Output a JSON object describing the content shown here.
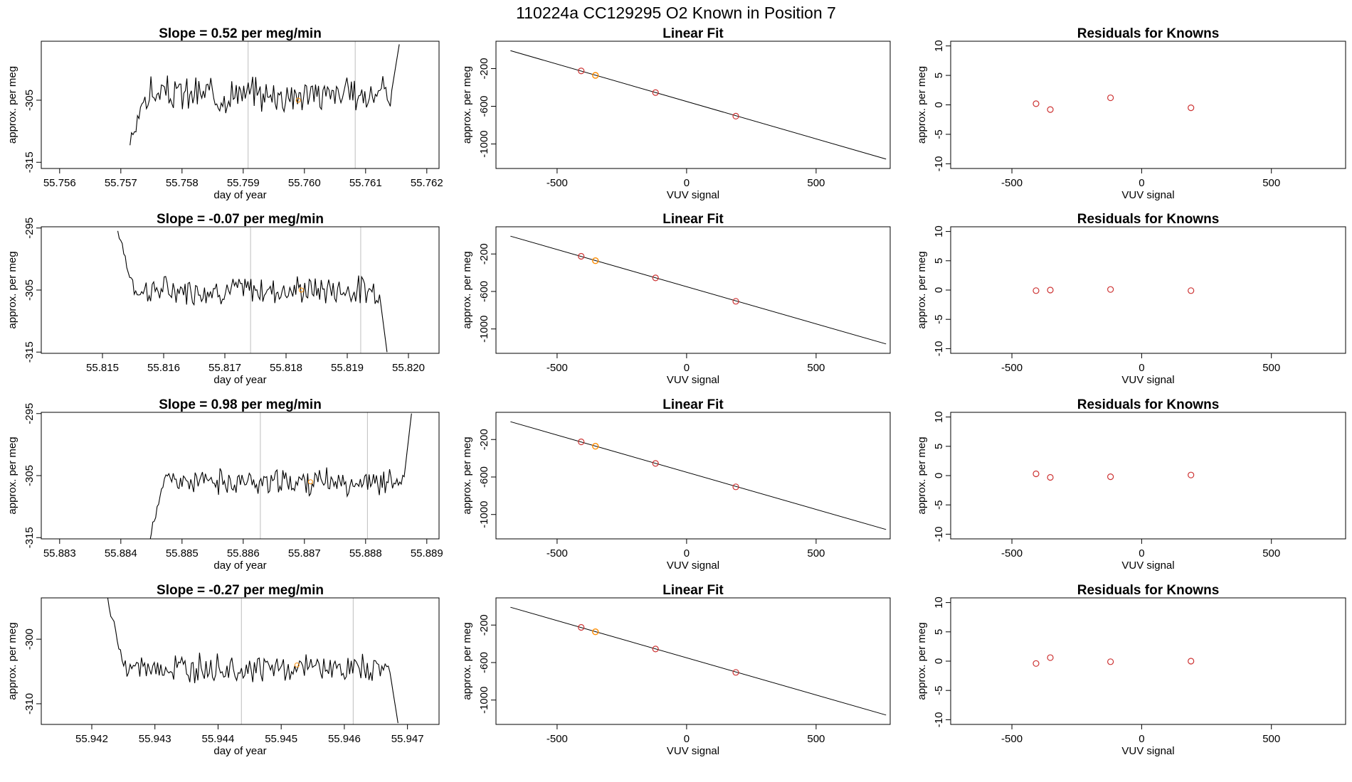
{
  "figure_title": "110224a      CC129295   O2 Known in Position  7",
  "colors": {
    "line": "#000000",
    "marker_known": "#cd3333",
    "marker_highlight": "#ff8c00",
    "vline": "#bebebe"
  },
  "chart_data": [
    {
      "type": "line",
      "title": "Slope =  0.52  per meg/min",
      "xlabel": "day of year",
      "ylabel": "approx. per meg",
      "xlim": [
        55.7557,
        55.7622
      ],
      "ylim": [
        -316,
        -295.5
      ],
      "xticks": [
        "55.756",
        "55.757",
        "55.758",
        "55.759",
        "55.760",
        "55.761",
        "55.762"
      ],
      "yticks": [
        "-305",
        "-315"
      ],
      "start": 55.75715,
      "end": 55.76155,
      "start_value": -312,
      "end_value": -296,
      "base": -304,
      "jitter": 2.2,
      "seed": 3,
      "vlines": [
        55.75908,
        55.76083
      ],
      "highlight_point": [
        55.7599,
        -305
      ]
    },
    {
      "type": "scatter",
      "title": "Linear Fit",
      "xlabel": "VUV signal",
      "ylabel": "approx. per meg",
      "xlim": [
        -736,
        786
      ],
      "ylim": [
        -1260,
        90
      ],
      "xticks": [
        "-500",
        "0",
        "500"
      ],
      "yticks": [
        "-200",
        "-600",
        "-1000"
      ],
      "fit_line": {
        "x": [
          -680,
          770
        ],
        "y": [
          -10,
          -1160
        ]
      },
      "points_known": [
        {
          "x": -407,
          "y": -225
        },
        {
          "x": -120,
          "y": -455
        },
        {
          "x": 190,
          "y": -705
        }
      ],
      "points_highlight": [
        {
          "x": -352,
          "y": -272
        }
      ]
    },
    {
      "type": "scatter",
      "title": "Residuals for Knowns",
      "xlabel": "VUV signal",
      "ylabel": "approx. per meg",
      "xlim": [
        -736,
        786
      ],
      "ylim": [
        -10.8,
        10.8
      ],
      "xticks": [
        "-500",
        "0",
        "500"
      ],
      "yticks": [
        "10",
        "5",
        "0",
        "-5",
        "-10"
      ],
      "points_known": [
        {
          "x": -407,
          "y": 0.2
        },
        {
          "x": -352,
          "y": -0.8
        },
        {
          "x": -120,
          "y": 1.2
        },
        {
          "x": 190,
          "y": -0.5
        }
      ]
    },
    {
      "type": "line",
      "title": "Slope =  -0.07  per meg/min",
      "xlabel": "day of year",
      "ylabel": "approx. per meg",
      "xlim": [
        55.814,
        55.8205
      ],
      "ylim": [
        -315.2,
        -294.8
      ],
      "xticks": [
        "55.815",
        "55.816",
        "55.817",
        "55.818",
        "55.819",
        "55.820"
      ],
      "yticks": [
        "-295",
        "-305",
        "-315"
      ],
      "start": 55.81525,
      "end": 55.81965,
      "start_value": -295,
      "end_value": -315,
      "base": -305,
      "jitter": 1.8,
      "seed": 7,
      "vlines": [
        55.81742,
        55.81922
      ],
      "highlight_point": [
        55.81825,
        -305
      ]
    },
    {
      "type": "scatter",
      "title": "Linear Fit",
      "xlabel": "VUV signal",
      "ylabel": "approx. per meg",
      "xlim": [
        -736,
        786
      ],
      "ylim": [
        -1260,
        90
      ],
      "xticks": [
        "-500",
        "0",
        "500"
      ],
      "yticks": [
        "-200",
        "-600",
        "-1000"
      ],
      "fit_line": {
        "x": [
          -680,
          770
        ],
        "y": [
          -10,
          -1160
        ]
      },
      "points_known": [
        {
          "x": -407,
          "y": -225
        },
        {
          "x": -120,
          "y": -455
        },
        {
          "x": 190,
          "y": -705
        }
      ],
      "points_highlight": [
        {
          "x": -352,
          "y": -272
        }
      ]
    },
    {
      "type": "scatter",
      "title": "Residuals for Knowns",
      "xlabel": "VUV signal",
      "ylabel": "approx. per meg",
      "xlim": [
        -736,
        786
      ],
      "ylim": [
        -10.8,
        10.8
      ],
      "xticks": [
        "-500",
        "0",
        "500"
      ],
      "yticks": [
        "10",
        "5",
        "0",
        "-5",
        "-10"
      ],
      "points_known": [
        {
          "x": -407,
          "y": -0.1
        },
        {
          "x": -352,
          "y": 0.0
        },
        {
          "x": -120,
          "y": 0.1
        },
        {
          "x": 190,
          "y": -0.1
        }
      ]
    },
    {
      "type": "line",
      "title": "Slope =  0.98  per meg/min",
      "xlabel": "day of year",
      "ylabel": "approx. per meg",
      "xlim": [
        55.8827,
        55.8892
      ],
      "ylim": [
        -315.2,
        -294.8
      ],
      "xticks": [
        "55.883",
        "55.884",
        "55.885",
        "55.886",
        "55.887",
        "55.888",
        "55.889"
      ],
      "yticks": [
        "-295",
        "-305",
        "-315"
      ],
      "start": 55.88445,
      "end": 55.88875,
      "start_value": -316,
      "end_value": -295,
      "base": -306,
      "jitter": 1.6,
      "seed": 11,
      "vlines": [
        55.88628,
        55.88803
      ],
      "highlight_point": [
        55.8871,
        -306
      ]
    },
    {
      "type": "scatter",
      "title": "Linear Fit",
      "xlabel": "VUV signal",
      "ylabel": "approx. per meg",
      "xlim": [
        -736,
        786
      ],
      "ylim": [
        -1260,
        90
      ],
      "xticks": [
        "-500",
        "0",
        "500"
      ],
      "yticks": [
        "-200",
        "-600",
        "-1000"
      ],
      "fit_line": {
        "x": [
          -680,
          770
        ],
        "y": [
          -10,
          -1160
        ]
      },
      "points_known": [
        {
          "x": -407,
          "y": -225
        },
        {
          "x": -120,
          "y": -455
        },
        {
          "x": 190,
          "y": -705
        }
      ],
      "points_highlight": [
        {
          "x": -352,
          "y": -272
        }
      ]
    },
    {
      "type": "scatter",
      "title": "Residuals for Knowns",
      "xlabel": "VUV signal",
      "ylabel": "approx. per meg",
      "xlim": [
        -736,
        786
      ],
      "ylim": [
        -10.8,
        10.8
      ],
      "xticks": [
        "-500",
        "0",
        "500"
      ],
      "yticks": [
        "10",
        "5",
        "0",
        "-5",
        "-10"
      ],
      "points_known": [
        {
          "x": -407,
          "y": 0.3
        },
        {
          "x": -352,
          "y": -0.3
        },
        {
          "x": -120,
          "y": -0.2
        },
        {
          "x": 190,
          "y": 0.1
        }
      ]
    },
    {
      "type": "line",
      "title": "Slope =  -0.27  per meg/min",
      "xlabel": "day of year",
      "ylabel": "approx. per meg",
      "xlim": [
        55.9412,
        55.9475
      ],
      "ylim": [
        -313.2,
        -293.6
      ],
      "xticks": [
        "55.942",
        "55.943",
        "55.944",
        "55.945",
        "55.946",
        "55.947"
      ],
      "yticks": [
        "-300",
        "-310"
      ],
      "start": 55.94225,
      "end": 55.94685,
      "start_value": -294,
      "end_value": -313,
      "base": -304.5,
      "jitter": 1.7,
      "seed": 19,
      "vlines": [
        55.94437,
        55.94614
      ],
      "highlight_point": [
        55.94525,
        -304
      ]
    },
    {
      "type": "scatter",
      "title": "Linear Fit",
      "xlabel": "VUV signal",
      "ylabel": "approx. per meg",
      "xlim": [
        -736,
        786
      ],
      "ylim": [
        -1260,
        90
      ],
      "xticks": [
        "-500",
        "0",
        "500"
      ],
      "yticks": [
        "-200",
        "-600",
        "-1000"
      ],
      "fit_line": {
        "x": [
          -680,
          770
        ],
        "y": [
          -10,
          -1160
        ]
      },
      "points_known": [
        {
          "x": -407,
          "y": -225
        },
        {
          "x": -120,
          "y": -455
        },
        {
          "x": 190,
          "y": -705
        }
      ],
      "points_highlight": [
        {
          "x": -352,
          "y": -272
        }
      ]
    },
    {
      "type": "scatter",
      "title": "Residuals for Knowns",
      "xlabel": "VUV signal",
      "ylabel": "approx. per meg",
      "xlim": [
        -736,
        786
      ],
      "ylim": [
        -10.8,
        10.8
      ],
      "xticks": [
        "-500",
        "0",
        "500"
      ],
      "yticks": [
        "10",
        "5",
        "0",
        "-5",
        "-10"
      ],
      "points_known": [
        {
          "x": -407,
          "y": -0.4
        },
        {
          "x": -352,
          "y": 0.6
        },
        {
          "x": -120,
          "y": -0.1
        },
        {
          "x": 190,
          "y": 0.0
        }
      ]
    }
  ]
}
